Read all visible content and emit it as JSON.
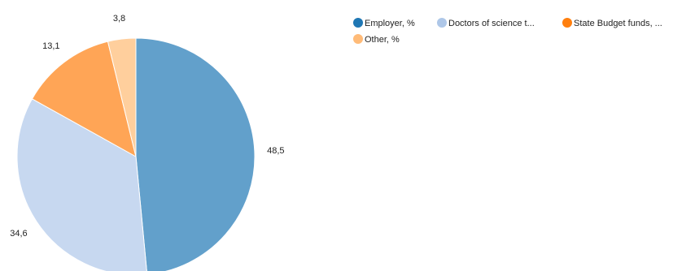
{
  "chart_data": {
    "type": "pie",
    "title": "",
    "start_angle_deg": 0,
    "direction": "clockwise",
    "legend_placement": "top-right",
    "series": [
      {
        "name": "Employer, %",
        "legend_label": "Employer, %",
        "value": 48.5,
        "label": "48,5",
        "color": "#1f77b4",
        "fill": "#62a0cb"
      },
      {
        "name": "Doctors of science t...",
        "legend_label": "Doctors of science t...",
        "value": 34.6,
        "label": "34,6",
        "color": "#aec7e8",
        "fill": "#c7d8f0"
      },
      {
        "name": "State Budget funds, ...",
        "legend_label": "State Budget funds, ...",
        "value": 13.1,
        "label": "13,1",
        "color": "#ff7f0e",
        "fill": "#ffa556"
      },
      {
        "name": "Other, %",
        "legend_label": "Other, %",
        "value": 3.8,
        "label": "3,8",
        "color": "#ffbb78",
        "fill": "#ffcf9d"
      }
    ]
  }
}
